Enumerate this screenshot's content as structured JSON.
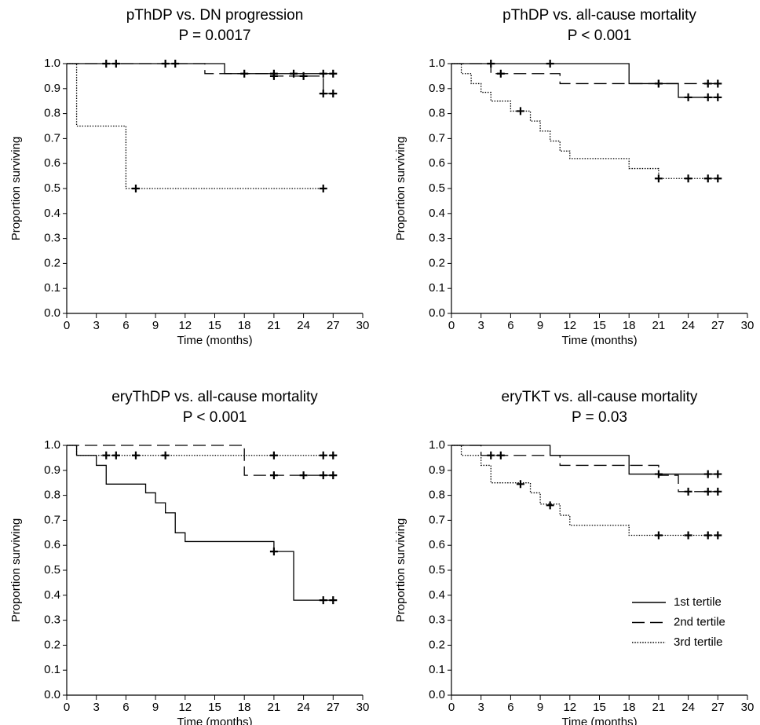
{
  "chart_data": [
    {
      "type": "step",
      "title": "pThDP vs. DN progression",
      "subtitle": "P = 0.0017",
      "xlabel": "Time (months)",
      "ylabel": "Proportion surviving",
      "xlim": [
        0,
        30
      ],
      "xticks": [
        0,
        3,
        6,
        9,
        12,
        15,
        18,
        21,
        24,
        27,
        30
      ],
      "ylim": [
        0,
        1
      ],
      "yticks": [
        {
          "value": 0,
          "label": "0.0"
        },
        0.1,
        0.2,
        0.3,
        0.4,
        0.5,
        0.6,
        0.7,
        0.8,
        0.9,
        {
          "value": 1,
          "label": "1.0"
        }
      ],
      "series": [
        {
          "linestyle": "solid",
          "color": "#000000",
          "x": [
            0,
            16
          ],
          "values": [
            1,
            0.96
          ],
          "censor_x": [
            4,
            10,
            18,
            21,
            23,
            26,
            27
          ],
          "censor_values": [
            1,
            1,
            0.96,
            0.96,
            0.96,
            0.96,
            0.96
          ]
        },
        {
          "linestyle": "dashed",
          "color": "#000000",
          "x": [
            0,
            14,
            21,
            26
          ],
          "values": [
            1,
            0.96,
            0.95,
            0.88
          ],
          "censor_x": [
            5,
            11,
            21,
            24,
            26,
            27
          ],
          "censor_values": [
            1,
            1,
            0.95,
            0.95,
            0.88,
            0.88
          ]
        },
        {
          "linestyle": "dotted",
          "color": "#000000",
          "x": [
            0,
            1,
            6
          ],
          "values": [
            1,
            0.75,
            0.5
          ],
          "censor_x": [
            7,
            26
          ],
          "censor_values": [
            0.5,
            0.5
          ]
        }
      ]
    },
    {
      "type": "step",
      "title": "pThDP vs. all-cause mortality",
      "subtitle": "P < 0.001",
      "xlabel": "Time (months)",
      "ylabel": "Proportion surviving",
      "xlim": [
        0,
        30
      ],
      "xticks": [
        0,
        3,
        6,
        9,
        12,
        15,
        18,
        21,
        24,
        27,
        30
      ],
      "ylim": [
        0,
        1
      ],
      "yticks": [
        {
          "value": 0,
          "label": "0.0"
        },
        0.1,
        0.2,
        0.3,
        0.4,
        0.5,
        0.6,
        0.7,
        0.8,
        0.9,
        {
          "value": 1,
          "label": "1.0"
        }
      ],
      "series": [
        {
          "linestyle": "solid",
          "color": "#000000",
          "x": [
            0,
            18,
            23
          ],
          "values": [
            1,
            0.92,
            0.865
          ],
          "censor_x": [
            4,
            10,
            21,
            24,
            26,
            27
          ],
          "censor_values": [
            1,
            1,
            0.92,
            0.865,
            0.865,
            0.865
          ]
        },
        {
          "linestyle": "dashed",
          "color": "#000000",
          "x": [
            0,
            4,
            11
          ],
          "values": [
            1,
            0.96,
            0.92
          ],
          "censor_x": [
            5,
            21,
            26,
            27
          ],
          "censor_values": [
            0.96,
            0.92,
            0.92,
            0.92
          ]
        },
        {
          "linestyle": "dotted",
          "color": "#000000",
          "x": [
            0,
            1,
            2,
            3,
            4,
            6,
            8,
            9,
            10,
            11,
            12,
            18,
            21
          ],
          "values": [
            1,
            0.96,
            0.92,
            0.885,
            0.85,
            0.81,
            0.77,
            0.73,
            0.69,
            0.65,
            0.62,
            0.58,
            0.54
          ],
          "censor_x": [
            7,
            21,
            24,
            26,
            27
          ],
          "censor_values": [
            0.81,
            0.54,
            0.54,
            0.54,
            0.54
          ]
        }
      ]
    },
    {
      "type": "step",
      "title": "eryThDP vs. all-cause mortality",
      "subtitle": "P < 0.001",
      "xlabel": "Time (months)",
      "ylabel": "Proportion surviving",
      "xlim": [
        0,
        30
      ],
      "xticks": [
        0,
        3,
        6,
        9,
        12,
        15,
        18,
        21,
        24,
        27,
        30
      ],
      "ylim": [
        0,
        1
      ],
      "yticks": [
        {
          "value": 0,
          "label": "0.0"
        },
        0.1,
        0.2,
        0.3,
        0.4,
        0.5,
        0.6,
        0.7,
        0.8,
        0.9,
        {
          "value": 1,
          "label": "1.0"
        }
      ],
      "series": [
        {
          "linestyle": "solid",
          "color": "#000000",
          "x": [
            0,
            1,
            3,
            4,
            8,
            9,
            10,
            11,
            12,
            21,
            23
          ],
          "values": [
            1,
            0.96,
            0.92,
            0.845,
            0.81,
            0.77,
            0.73,
            0.65,
            0.615,
            0.575,
            0.38
          ],
          "censor_x": [
            21,
            26,
            27
          ],
          "censor_values": [
            0.575,
            0.38,
            0.38
          ]
        },
        {
          "linestyle": "dashed",
          "color": "#000000",
          "x": [
            0,
            18
          ],
          "values": [
            1,
            0.88
          ],
          "censor_x": [
            21,
            24,
            26,
            27
          ],
          "censor_values": [
            0.88,
            0.88,
            0.88,
            0.88
          ]
        },
        {
          "linestyle": "dotted",
          "color": "#000000",
          "x": [
            0,
            1
          ],
          "values": [
            1,
            0.96
          ],
          "censor_x": [
            4,
            5,
            7,
            10,
            21,
            26,
            27
          ],
          "censor_values": [
            0.96,
            0.96,
            0.96,
            0.96,
            0.96,
            0.96,
            0.96
          ]
        }
      ]
    },
    {
      "type": "step",
      "title": "eryTKT vs. all-cause mortality",
      "subtitle": "P = 0.03",
      "xlabel": "Time (months)",
      "ylabel": "Proportion surviving",
      "xlim": [
        0,
        30
      ],
      "xticks": [
        0,
        3,
        6,
        9,
        12,
        15,
        18,
        21,
        24,
        27,
        30
      ],
      "ylim": [
        0,
        1
      ],
      "yticks": [
        {
          "value": 0,
          "label": "0.0"
        },
        0.1,
        0.2,
        0.3,
        0.4,
        0.5,
        0.6,
        0.7,
        0.8,
        0.9,
        {
          "value": 1,
          "label": "1.0"
        }
      ],
      "legend": "lower right",
      "series": [
        {
          "name": "1st tertile",
          "linestyle": "solid",
          "color": "#000000",
          "x": [
            0,
            10,
            18
          ],
          "values": [
            1,
            0.96,
            0.885
          ],
          "censor_x": [
            21,
            26,
            27
          ],
          "censor_values": [
            0.885,
            0.885,
            0.885
          ]
        },
        {
          "name": "2nd tertile",
          "linestyle": "dashed",
          "color": "#000000",
          "x": [
            0,
            3,
            11,
            21,
            23
          ],
          "values": [
            1,
            0.96,
            0.92,
            0.88,
            0.815
          ],
          "censor_x": [
            4,
            5,
            24,
            26,
            27
          ],
          "censor_values": [
            0.96,
            0.96,
            0.815,
            0.815,
            0.815
          ]
        },
        {
          "name": "3rd tertile",
          "linestyle": "dotted",
          "color": "#000000",
          "x": [
            0,
            1,
            3,
            4,
            8,
            9,
            11,
            12,
            18
          ],
          "values": [
            1,
            0.96,
            0.92,
            0.85,
            0.81,
            0.765,
            0.72,
            0.68,
            0.64
          ],
          "censor_x": [
            7,
            10,
            21,
            24,
            26,
            27
          ],
          "censor_values": [
            0.845,
            0.76,
            0.64,
            0.64,
            0.64,
            0.64
          ]
        }
      ]
    }
  ]
}
